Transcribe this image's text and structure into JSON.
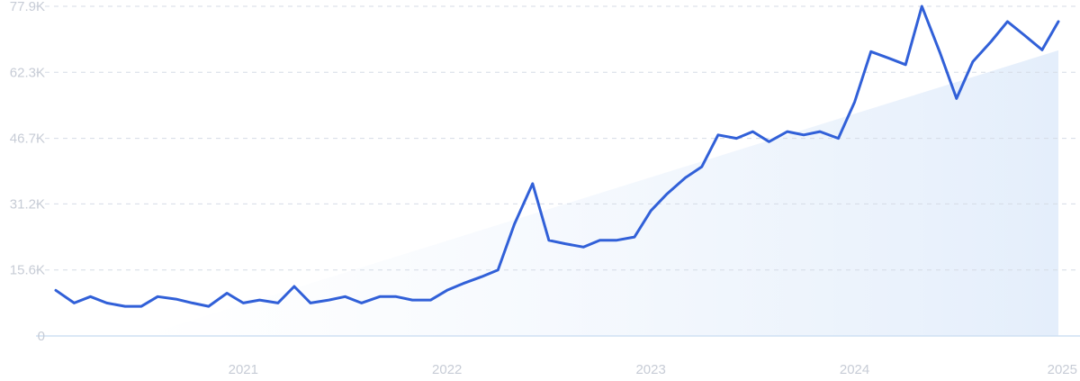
{
  "chart_data": {
    "type": "line",
    "title": "",
    "xlabel": "",
    "ylabel": "",
    "y_ticks": [
      "0",
      "15.6K",
      "31.2K",
      "46.7K",
      "62.3K",
      "77.9K"
    ],
    "y_tick_values": [
      0,
      15600,
      31200,
      46700,
      62300,
      77900
    ],
    "ylim": [
      0,
      77900
    ],
    "x_ticks": [
      "2021",
      "2022",
      "2023",
      "2024",
      "2025"
    ],
    "x_tick_values": [
      2021,
      2022,
      2023,
      2024,
      2025
    ],
    "xlim": [
      2020.08,
      2025.0
    ],
    "grid": true,
    "colors": {
      "line": "#3160d8",
      "trend_fill": "#e6f0fc",
      "grid": "#d5dbe6",
      "tick_text": "#c7ccd6"
    },
    "trend": {
      "x": [
        2020.5,
        2025.0
      ],
      "y": [
        0,
        67500
      ]
    },
    "series": [
      {
        "x": [
          2020.08,
          2020.17,
          2020.25,
          2020.33,
          2020.42,
          2020.5,
          2020.58,
          2020.67,
          2020.75,
          2020.83,
          2020.92,
          2021.0,
          2021.08,
          2021.17,
          2021.25,
          2021.33,
          2021.42,
          2021.5,
          2021.58,
          2021.67,
          2021.75,
          2021.83,
          2021.92,
          2022.0,
          2022.08,
          2022.17,
          2022.25,
          2022.33,
          2022.42,
          2022.5,
          2022.58,
          2022.67,
          2022.75,
          2022.83,
          2022.92,
          2023.0,
          2023.08,
          2023.17,
          2023.25,
          2023.33,
          2023.42,
          2023.5,
          2023.58,
          2023.67,
          2023.75,
          2023.83,
          2023.92,
          2024.0,
          2024.08,
          2024.17,
          2024.25,
          2024.33,
          2024.42,
          2024.5,
          2024.58,
          2024.67,
          2024.75,
          2024.83,
          2024.92,
          2025.0
        ],
        "y": [
          10800,
          7800,
          9300,
          7800,
          7000,
          7000,
          9300,
          8700,
          7800,
          7000,
          10100,
          7800,
          8500,
          7800,
          11700,
          7800,
          8500,
          9300,
          7800,
          9300,
          9300,
          8500,
          8500,
          10800,
          12400,
          14000,
          15600,
          26400,
          36000,
          22600,
          21800,
          21000,
          22600,
          22600,
          23400,
          29600,
          33600,
          37400,
          40000,
          47500,
          46700,
          48300,
          45900,
          48300,
          47500,
          48300,
          46700,
          55300,
          67200,
          65600,
          64100,
          77900,
          66800,
          56100,
          64800,
          69600,
          74300,
          71200,
          67600,
          74300
        ]
      }
    ]
  }
}
